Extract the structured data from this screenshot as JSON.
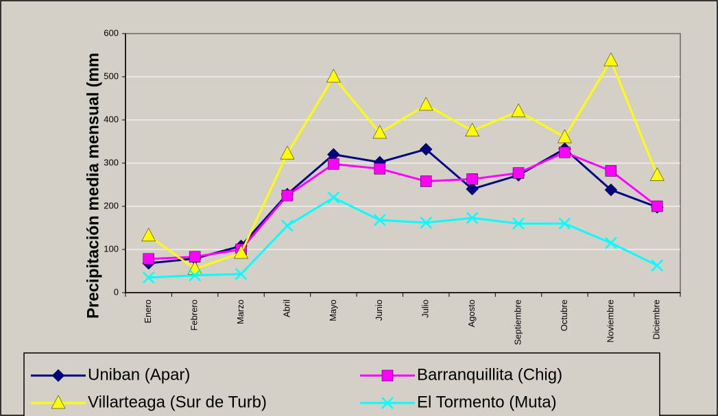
{
  "chart_data": {
    "type": "line",
    "y_label": "Precipitación media mensual (mm",
    "categories": [
      "Enero",
      "Febrero",
      "Marzo",
      "Abril",
      "Mayo",
      "Junio",
      "Julio",
      "Agosto",
      "Septiembre",
      "Octubre",
      "Noviembre",
      "Diciembre"
    ],
    "series": [
      {
        "name": "Uniban (Apar)",
        "color": "#000080",
        "marker": "diamond",
        "values": [
          68,
          79,
          108,
          228,
          320,
          302,
          332,
          240,
          272,
          333,
          238,
          198
        ]
      },
      {
        "name": "Barranquillita (Chig)",
        "color": "#ff00ff",
        "marker": "square",
        "values": [
          78,
          83,
          100,
          225,
          298,
          287,
          258,
          263,
          277,
          325,
          282,
          200
        ]
      },
      {
        "name": "Villarteaga (Sur de Turb)",
        "color": "#ffff00",
        "marker": "triangle",
        "values": [
          132,
          55,
          92,
          322,
          500,
          370,
          435,
          375,
          420,
          360,
          538,
          272
        ]
      },
      {
        "name": "El Tormento (Muta)",
        "color": "#00ffff",
        "marker": "x",
        "values": [
          35,
          40,
          43,
          155,
          220,
          168,
          162,
          173,
          160,
          160,
          115,
          63
        ]
      }
    ],
    "ylim": [
      0,
      600
    ],
    "yticks": [
      0,
      100,
      200,
      300,
      400,
      500,
      600
    ],
    "grid": true,
    "legend": "bottom"
  }
}
